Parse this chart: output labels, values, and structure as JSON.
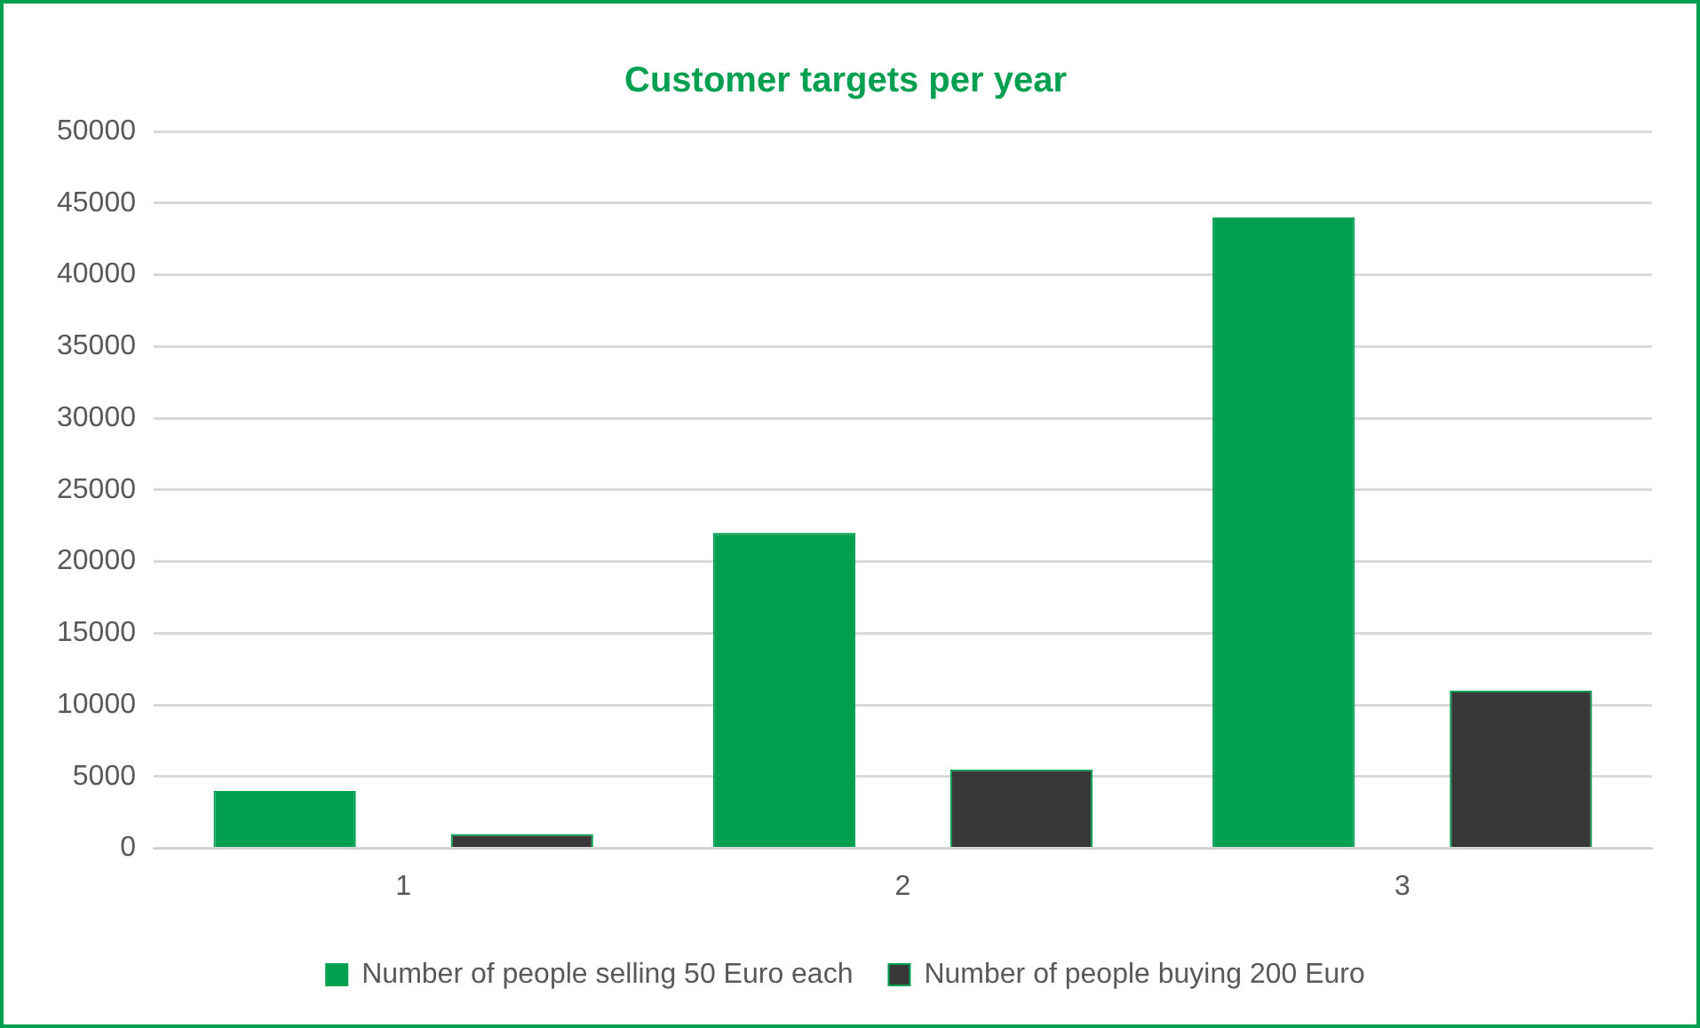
{
  "chart_data": {
    "type": "bar",
    "title": "Customer targets per year",
    "categories": [
      "1",
      "2",
      "3"
    ],
    "series": [
      {
        "name": "Number of people selling 50 Euro each",
        "color": "#00a050",
        "values": [
          4000,
          22000,
          44000
        ]
      },
      {
        "name": "Number of people buying 200 Euro",
        "color": "#383838",
        "values": [
          1000,
          5500,
          11000
        ]
      }
    ],
    "ylim": [
      0,
      50000
    ],
    "yticks": [
      0,
      5000,
      10000,
      15000,
      20000,
      25000,
      30000,
      35000,
      40000,
      45000,
      50000
    ],
    "grid": "y",
    "legend": "bottom"
  }
}
